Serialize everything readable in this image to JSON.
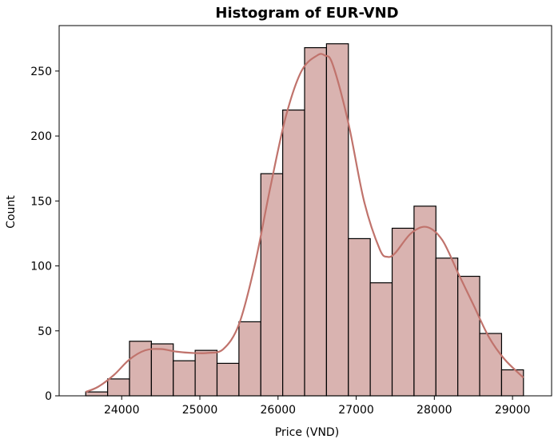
{
  "chart_data": {
    "type": "bar",
    "title": "Histogram of EUR-VND",
    "xlabel": "Price (VND)",
    "ylabel": "Count",
    "xlim": [
      23200,
      29500
    ],
    "ylim": [
      0,
      285
    ],
    "x_ticks": [
      24000,
      25000,
      26000,
      27000,
      28000,
      29000
    ],
    "y_ticks": [
      0,
      50,
      100,
      150,
      200,
      250
    ],
    "bin_edges": [
      23540,
      23820,
      24100,
      24380,
      24660,
      24940,
      25220,
      25500,
      25780,
      26060,
      26340,
      26620,
      26900,
      27180,
      27460,
      27740,
      28020,
      28300,
      28580,
      28860,
      29140
    ],
    "values": [
      3,
      13,
      42,
      40,
      27,
      35,
      25,
      57,
      171,
      220,
      268,
      271,
      121,
      87,
      129,
      146,
      106,
      92,
      48,
      20
    ],
    "kde": {
      "x": [
        23540,
        23700,
        23900,
        24100,
        24300,
        24500,
        24700,
        24900,
        25100,
        25300,
        25500,
        25700,
        25900,
        26100,
        26300,
        26500,
        26600,
        26700,
        26900,
        27100,
        27300,
        27400,
        27500,
        27700,
        27900,
        28100,
        28300,
        28500,
        28700,
        28900,
        29140
      ],
      "y": [
        3,
        7,
        16,
        28,
        35,
        36,
        34,
        33,
        33,
        36,
        55,
        100,
        160,
        215,
        250,
        262,
        262,
        255,
        210,
        150,
        113,
        107,
        110,
        125,
        130,
        120,
        95,
        70,
        45,
        28,
        14
      ]
    },
    "bar_color": "#d9b3b0",
    "bar_edge_color": "#000000",
    "kde_color": "#c0736c",
    "grid": false
  }
}
